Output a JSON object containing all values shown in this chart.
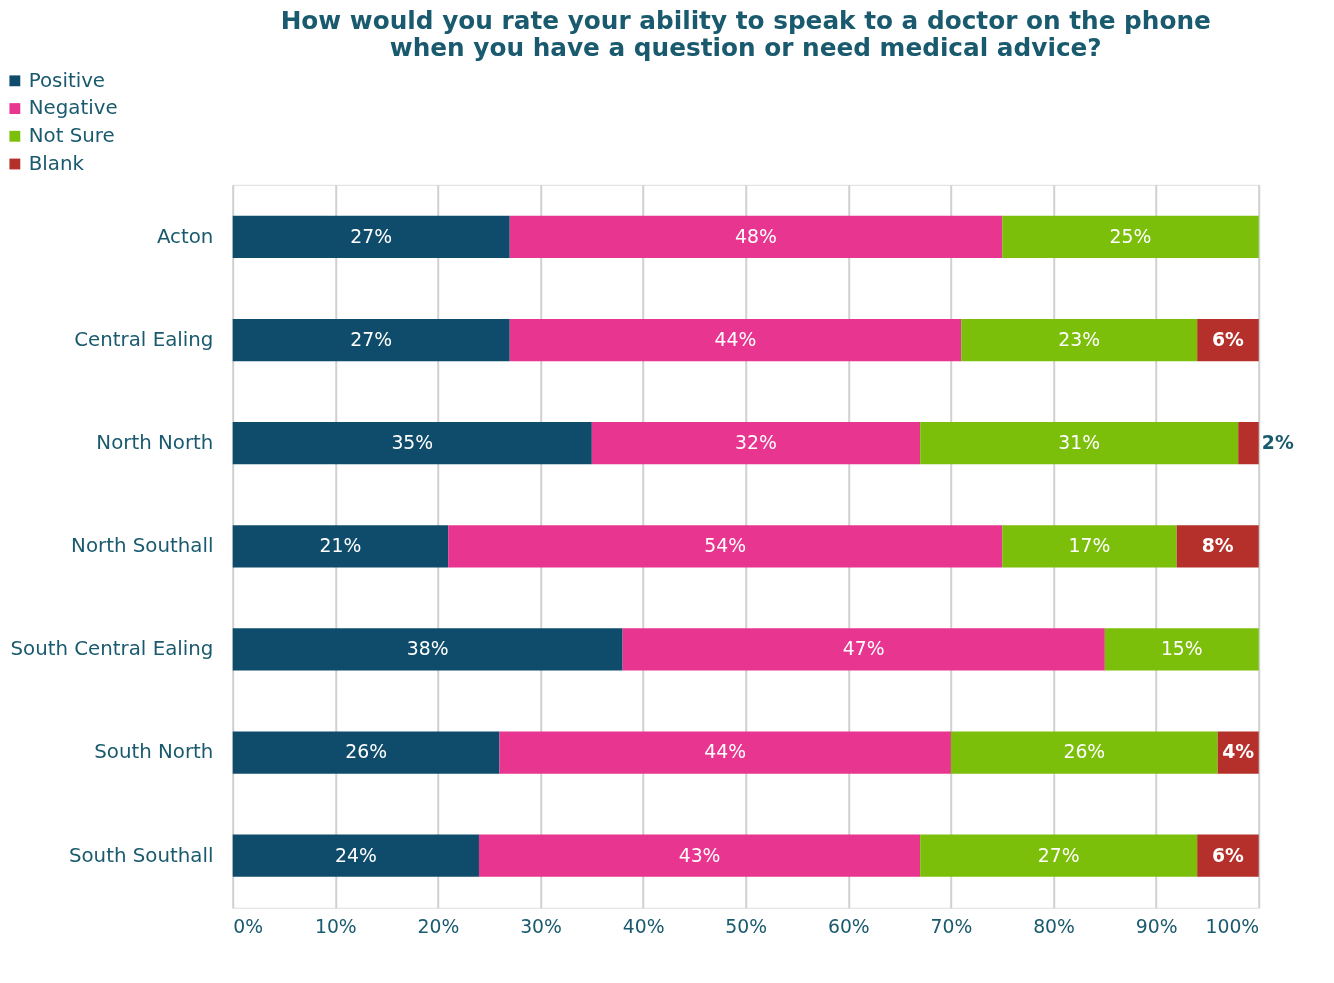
{
  "chart_data": {
    "type": "bar",
    "orientation": "horizontal",
    "stacked": true,
    "title": "How would you rate your ability to speak to a doctor on the phone\nwhen you have a question or need medical advice?",
    "categories": [
      "Acton",
      "Central Ealing",
      "North North",
      "North Southall",
      "South Central Ealing",
      "South North",
      "South Southall"
    ],
    "series": [
      {
        "name": "Positive",
        "color": "#0f4c6b",
        "values": [
          27,
          27,
          35,
          21,
          38,
          26,
          24
        ],
        "value_labels": [
          "27%",
          "27%",
          "35%",
          "21%",
          "38%",
          "26%",
          "24%"
        ]
      },
      {
        "name": "Negative",
        "color": "#e8358f",
        "values": [
          48,
          44,
          32,
          54,
          47,
          44,
          43
        ],
        "value_labels": [
          "48%",
          "44%",
          "32%",
          "54%",
          "47%",
          "44%",
          "43%"
        ]
      },
      {
        "name": "Not Sure",
        "color": "#7bbf0a",
        "values": [
          25,
          23,
          31,
          17,
          15,
          26,
          27
        ],
        "value_labels": [
          "25%",
          "23%",
          "31%",
          "17%",
          "15%",
          "26%",
          "27%"
        ]
      },
      {
        "name": "Blank",
        "color": "#b5302a",
        "values": [
          null,
          6,
          2,
          8,
          null,
          4,
          6
        ],
        "value_labels": [
          null,
          "6%",
          "2%",
          "8%",
          null,
          "4%",
          "6%"
        ]
      }
    ],
    "xlim": [
      0,
      100
    ],
    "xticks": [
      {
        "value": 0,
        "label": "0%"
      },
      {
        "value": 10,
        "label": "10%"
      },
      {
        "value": 20,
        "label": "20%"
      },
      {
        "value": 30,
        "label": "30%"
      },
      {
        "value": 40,
        "label": "40%"
      },
      {
        "value": 50,
        "label": "50%"
      },
      {
        "value": 60,
        "label": "60%"
      },
      {
        "value": 70,
        "label": "70%"
      },
      {
        "value": 80,
        "label": "80%"
      },
      {
        "value": 90,
        "label": "90%"
      },
      {
        "value": 100,
        "label": "100%"
      }
    ],
    "grid": "x",
    "legend": "top left"
  }
}
